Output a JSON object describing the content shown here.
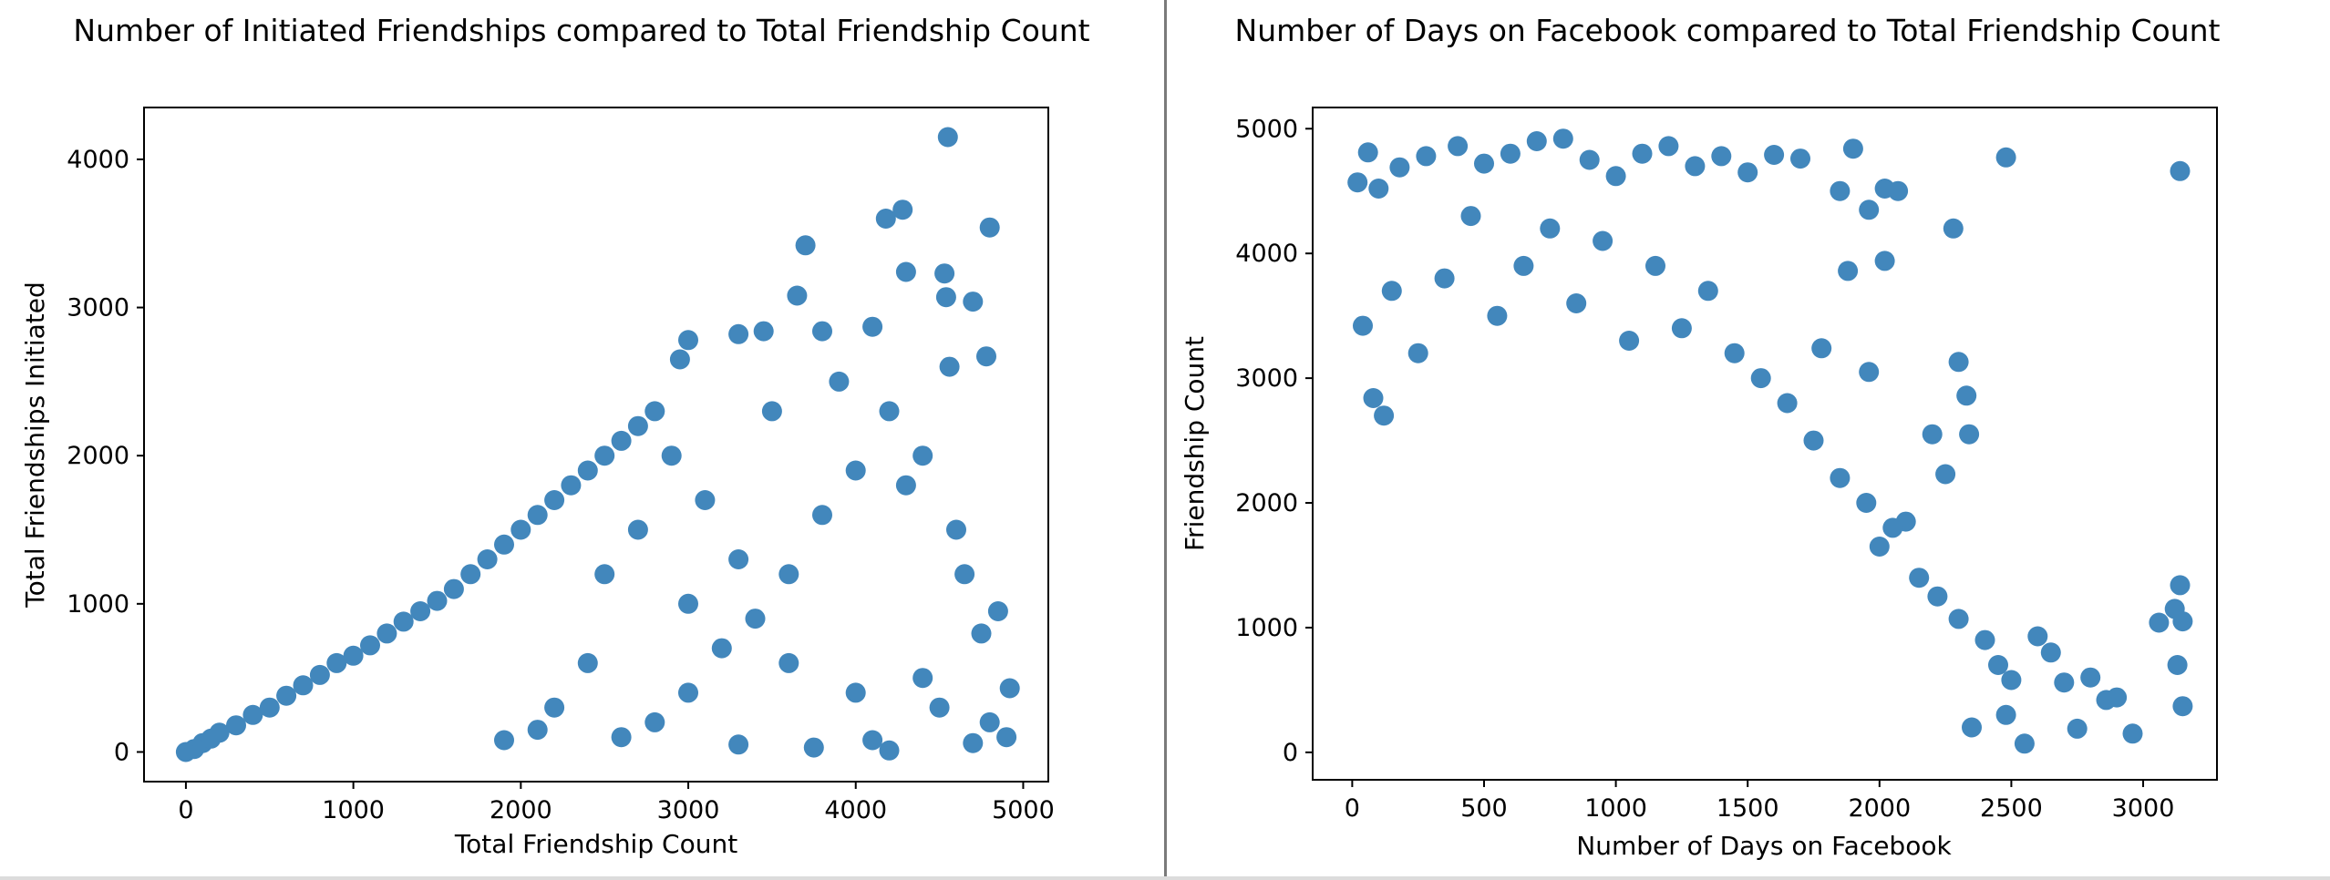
{
  "chart_data": [
    {
      "type": "scatter",
      "title": "Number of Initiated Friendships compared to Total Friendship Count",
      "xlabel": "Total Friendship Count",
      "ylabel": "Total Friendships Initiated",
      "xlim": [
        -250,
        5150
      ],
      "ylim": [
        -200,
        4350
      ],
      "xticks": [
        0,
        1000,
        2000,
        3000,
        4000,
        5000
      ],
      "yticks": [
        0,
        1000,
        2000,
        3000,
        4000
      ],
      "marker_color": "#4287bc",
      "grid": false,
      "points": [
        [
          0,
          0
        ],
        [
          50,
          20
        ],
        [
          100,
          60
        ],
        [
          150,
          90
        ],
        [
          200,
          130
        ],
        [
          300,
          180
        ],
        [
          400,
          250
        ],
        [
          500,
          300
        ],
        [
          600,
          380
        ],
        [
          700,
          450
        ],
        [
          800,
          520
        ],
        [
          900,
          600
        ],
        [
          1000,
          650
        ],
        [
          1100,
          720
        ],
        [
          1200,
          800
        ],
        [
          1300,
          880
        ],
        [
          1400,
          950
        ],
        [
          1500,
          1020
        ],
        [
          1600,
          1100
        ],
        [
          1700,
          1200
        ],
        [
          1800,
          1300
        ],
        [
          1900,
          1400
        ],
        [
          2000,
          1500
        ],
        [
          2100,
          1600
        ],
        [
          2200,
          1700
        ],
        [
          2300,
          1800
        ],
        [
          2400,
          1900
        ],
        [
          2500,
          2000
        ],
        [
          2600,
          2100
        ],
        [
          2700,
          2200
        ],
        [
          2800,
          2300
        ],
        [
          2950,
          2650
        ],
        [
          3000,
          2780
        ],
        [
          3300,
          2820
        ],
        [
          3450,
          2840
        ],
        [
          3650,
          3080
        ],
        [
          3700,
          3420
        ],
        [
          3800,
          2840
        ],
        [
          4100,
          2870
        ],
        [
          4180,
          3600
        ],
        [
          4280,
          3660
        ],
        [
          4300,
          3240
        ],
        [
          4530,
          3230
        ],
        [
          4540,
          3070
        ],
        [
          4550,
          4150
        ],
        [
          4560,
          2600
        ],
        [
          4700,
          3040
        ],
        [
          4800,
          3540
        ],
        [
          4780,
          2670
        ],
        [
          4900,
          100
        ],
        [
          4920,
          430
        ],
        [
          4850,
          950
        ],
        [
          4600,
          1500
        ],
        [
          4400,
          2000
        ],
        [
          4200,
          2300
        ],
        [
          4000,
          1900
        ],
        [
          3800,
          1600
        ],
        [
          3600,
          1200
        ],
        [
          3400,
          900
        ],
        [
          3200,
          700
        ],
        [
          3000,
          400
        ],
        [
          2800,
          200
        ],
        [
          2600,
          100
        ],
        [
          3750,
          30
        ],
        [
          4100,
          80
        ],
        [
          4200,
          10
        ],
        [
          4700,
          60
        ],
        [
          4500,
          300
        ],
        [
          3300,
          50
        ],
        [
          2900,
          2000
        ],
        [
          3100,
          1700
        ],
        [
          3500,
          2300
        ],
        [
          3900,
          2500
        ],
        [
          4300,
          1800
        ],
        [
          4650,
          1200
        ],
        [
          4750,
          800
        ],
        [
          2400,
          600
        ],
        [
          2200,
          300
        ],
        [
          2100,
          150
        ],
        [
          1900,
          80
        ],
        [
          2500,
          1200
        ],
        [
          2700,
          1500
        ],
        [
          3000,
          1000
        ],
        [
          3300,
          1300
        ],
        [
          3600,
          600
        ],
        [
          4000,
          400
        ],
        [
          4400,
          500
        ],
        [
          4800,
          200
        ]
      ]
    },
    {
      "type": "scatter",
      "title": "Number of Days on Facebook compared to Total Friendship Count",
      "xlabel": "Number of Days on Facebook",
      "ylabel": "Friendship Count",
      "xlim": [
        -150,
        3280
      ],
      "ylim": [
        -220,
        5170
      ],
      "xticks": [
        0,
        500,
        1000,
        1500,
        2000,
        2500,
        3000
      ],
      "yticks": [
        0,
        1000,
        2000,
        3000,
        4000,
        5000
      ],
      "marker_color": "#4287bc",
      "grid": false,
      "points": [
        [
          20,
          4570
        ],
        [
          60,
          4810
        ],
        [
          100,
          4520
        ],
        [
          180,
          4690
        ],
        [
          280,
          4780
        ],
        [
          400,
          4860
        ],
        [
          500,
          4720
        ],
        [
          600,
          4800
        ],
        [
          700,
          4900
        ],
        [
          800,
          4920
        ],
        [
          900,
          4750
        ],
        [
          1000,
          4620
        ],
        [
          1100,
          4800
        ],
        [
          1200,
          4860
        ],
        [
          1300,
          4700
        ],
        [
          1400,
          4780
        ],
        [
          1500,
          4650
        ],
        [
          1600,
          4790
        ],
        [
          1700,
          4760
        ],
        [
          1850,
          4500
        ],
        [
          1900,
          4840
        ],
        [
          1960,
          4350
        ],
        [
          2020,
          4520
        ],
        [
          2070,
          4500
        ],
        [
          2480,
          4770
        ],
        [
          3140,
          4660
        ],
        [
          2280,
          4200
        ],
        [
          2020,
          3940
        ],
        [
          1880,
          3860
        ],
        [
          1780,
          3240
        ],
        [
          1960,
          3050
        ],
        [
          2300,
          3130
        ],
        [
          2330,
          2860
        ],
        [
          2340,
          2550
        ],
        [
          2200,
          2550
        ],
        [
          2250,
          2230
        ],
        [
          2100,
          1850
        ],
        [
          2000,
          1650
        ],
        [
          2150,
          1400
        ],
        [
          2220,
          1250
        ],
        [
          2300,
          1070
        ],
        [
          2400,
          900
        ],
        [
          2450,
          700
        ],
        [
          2500,
          580
        ],
        [
          2600,
          930
        ],
        [
          2650,
          800
        ],
        [
          2700,
          560
        ],
        [
          2800,
          600
        ],
        [
          2860,
          420
        ],
        [
          2900,
          440
        ],
        [
          2960,
          150
        ],
        [
          3060,
          1040
        ],
        [
          3140,
          1340
        ],
        [
          3120,
          1150
        ],
        [
          3150,
          1050
        ],
        [
          3130,
          700
        ],
        [
          3150,
          370
        ],
        [
          2550,
          70
        ],
        [
          2750,
          190
        ],
        [
          2480,
          300
        ],
        [
          2350,
          200
        ],
        [
          40,
          3420
        ],
        [
          80,
          2840
        ],
        [
          120,
          2700
        ],
        [
          150,
          3700
        ],
        [
          250,
          3200
        ],
        [
          350,
          3800
        ],
        [
          450,
          4300
        ],
        [
          550,
          3500
        ],
        [
          650,
          3900
        ],
        [
          750,
          4200
        ],
        [
          850,
          3600
        ],
        [
          950,
          4100
        ],
        [
          1050,
          3300
        ],
        [
          1150,
          3900
        ],
        [
          1250,
          3400
        ],
        [
          1350,
          3700
        ],
        [
          1450,
          3200
        ],
        [
          1550,
          3000
        ],
        [
          1650,
          2800
        ],
        [
          1750,
          2500
        ],
        [
          1850,
          2200
        ],
        [
          1950,
          2000
        ],
        [
          2050,
          1800
        ]
      ]
    }
  ]
}
